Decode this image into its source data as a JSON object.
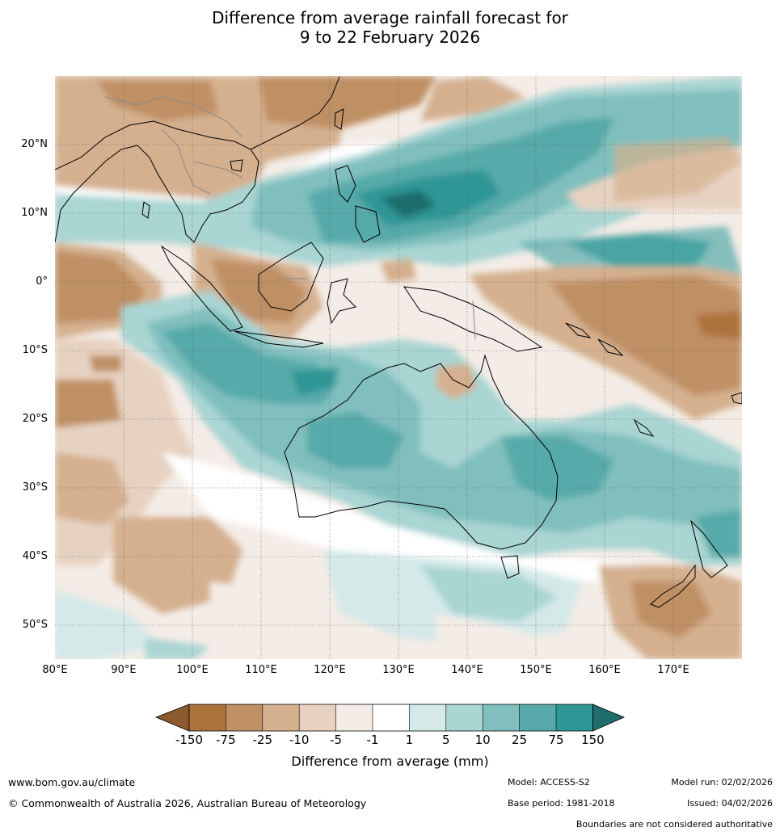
{
  "title": {
    "line1": "Difference from average rainfall forecast for",
    "line2": "9 to 22 February 2026"
  },
  "axes": {
    "lat_labels": [
      "20°N",
      "10°N",
      "0°",
      "10°S",
      "20°S",
      "30°S",
      "40°S",
      "50°S"
    ],
    "lon_labels": [
      "80°E",
      "90°E",
      "100°E",
      "110°E",
      "120°E",
      "130°E",
      "140°E",
      "150°E",
      "160°E",
      "170°E"
    ],
    "lon_range": [
      80,
      180
    ],
    "lat_range": [
      -55,
      30
    ]
  },
  "legend": {
    "title": "Difference from average (mm)",
    "labels": [
      "-150",
      "-75",
      "-25",
      "-10",
      "-5",
      "-1",
      "1",
      "5",
      "10",
      "25",
      "75",
      "150"
    ],
    "colors": [
      "#8c5a2e",
      "#ad733c",
      "#c09065",
      "#d4b08f",
      "#e7d2c1",
      "#f4ece6",
      "#ffffff",
      "#d4e9e8",
      "#a9d5d3",
      "#80bfbd",
      "#57aaa9",
      "#2e9695",
      "#1f6e6d"
    ]
  },
  "footer": {
    "website": "www.bom.gov.au/climate",
    "copyright": "© Commonwealth of Australia 2026, Australian Bureau of Meteorology",
    "model": "Model: ACCESS-S2",
    "base_period": "Base period: 1981-2018",
    "model_run": "Model run: 02/02/2026",
    "issued": "Issued: 04/02/2026",
    "disclaimer": "Boundaries are not considered authoritative"
  }
}
